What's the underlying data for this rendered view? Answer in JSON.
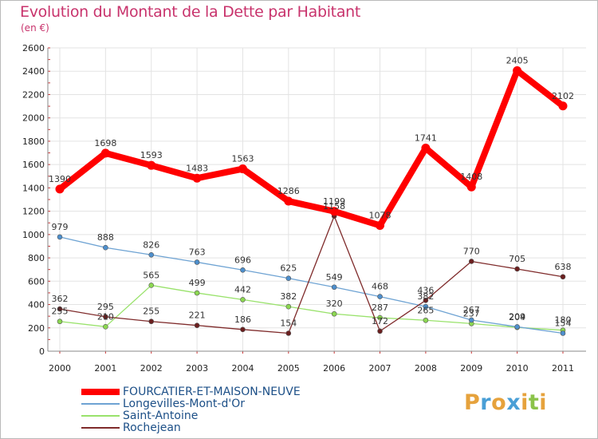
{
  "title": "Evolution du Montant de la Dette par Habitant",
  "subtitle": "(en €)",
  "logo": {
    "text": "Proxiti",
    "letters": [
      "P",
      "r",
      "o",
      "x",
      "i",
      "t",
      "i"
    ],
    "colors": [
      "#e6a23c",
      "#4a9fd6",
      "#e6a23c",
      "#4a9fd6",
      "#e6a23c",
      "#8bc34a",
      "#e6a23c"
    ]
  },
  "chart_data": {
    "type": "line",
    "x": [
      "2000",
      "2001",
      "2002",
      "2003",
      "2004",
      "2005",
      "2006",
      "2007",
      "2008",
      "2009",
      "2010",
      "2011"
    ],
    "ylim": [
      0,
      2600
    ],
    "yticks": [
      "0",
      "200",
      "400",
      "600",
      "800",
      "1000",
      "1200",
      "1400",
      "1600",
      "1800",
      "2000",
      "2200",
      "2400",
      "2600"
    ],
    "grid": true,
    "legend_position": "bottom-left",
    "series": [
      {
        "name": "Saint-Antoine",
        "color": "#99e26b",
        "point": "#8cd851",
        "values": [
          255,
          210,
          565,
          499,
          442,
          382,
          320,
          287,
          265,
          237,
          204,
          180
        ],
        "labels": [
          "255",
          "210",
          "565",
          "499",
          "442",
          "382",
          "320",
          "287",
          "265",
          "237",
          "204",
          "180"
        ],
        "width": 1.3
      },
      {
        "name": "Longevilles-Mont-d'Or",
        "color": "#6ea3d3",
        "point": "#4d8fcd",
        "values": [
          979,
          888,
          826,
          763,
          696,
          625,
          549,
          468,
          382,
          267,
          209,
          154
        ],
        "labels": [
          "979",
          "888",
          "826",
          "763",
          "696",
          "625",
          "549",
          "468",
          "382",
          "267",
          "209",
          "154"
        ],
        "width": 1.3
      },
      {
        "name": "Rochejean",
        "color": "#7f2b2b",
        "point": "#6b1f1f",
        "values": [
          362,
          295,
          255,
          221,
          186,
          154,
          1158,
          172,
          436,
          770,
          705,
          638
        ],
        "labels": [
          "362",
          "295",
          "255",
          "221",
          "186",
          "154",
          "1158",
          "172",
          "436",
          "770",
          "705",
          "638"
        ],
        "width": 1.3
      },
      {
        "name": "FOURCATIER-ET-MAISON-NEUVE",
        "color": "#ff0000",
        "point": "#ff0000",
        "values": [
          1390,
          1698,
          1593,
          1483,
          1563,
          1286,
          1199,
          1078,
          1741,
          1408,
          2405,
          2102
        ],
        "labels": [
          "1390",
          "1698",
          "1593",
          "1483",
          "1563",
          "1286",
          "1199",
          "1078",
          "1741",
          "1408",
          "2405",
          "2102"
        ],
        "width": 8
      }
    ]
  },
  "legend": [
    {
      "label": "FOURCATIER-ET-MAISON-NEUVE",
      "color": "#ff0000",
      "thickness": 8
    },
    {
      "label": "Longevilles-Mont-d'Or",
      "color": "#6ea3d3",
      "thickness": 2
    },
    {
      "label": "Saint-Antoine",
      "color": "#99e26b",
      "thickness": 2
    },
    {
      "label": "Rochejean",
      "color": "#7f2b2b",
      "thickness": 2
    }
  ]
}
